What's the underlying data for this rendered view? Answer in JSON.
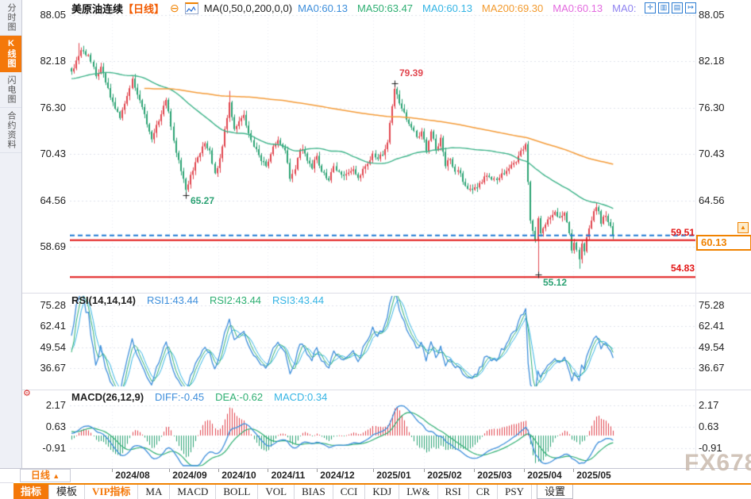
{
  "app": {
    "watermark": "FX678"
  },
  "sidebar": {
    "items": [
      {
        "label": "分时图",
        "active": false
      },
      {
        "label": "K线图",
        "active": true
      },
      {
        "label": "闪电图",
        "active": false
      },
      {
        "label": "合约资料",
        "active": false
      }
    ]
  },
  "header": {
    "title": "美原油连续",
    "interval_tag": "【日线】",
    "ma_settings": "MA(0,50,0,200,0,0)",
    "ma_values": [
      {
        "label": "MA0:60.13",
        "color": "#3d8edb"
      },
      {
        "label": "MA50:63.47",
        "color": "#2eaf72"
      },
      {
        "label": "MA0:60.13",
        "color": "#34b4e4"
      },
      {
        "label": "MA200:69.30",
        "color": "#f29a2e"
      },
      {
        "label": "MA0:60.13",
        "color": "#e36adf"
      },
      {
        "label": "MA0:",
        "color": "#8f83f0"
      }
    ],
    "window_icons": [
      {
        "name": "crosshair-icon",
        "glyph": "✛"
      },
      {
        "name": "axis-range-icon",
        "glyph": "▥"
      },
      {
        "name": "chart-zoom-icon",
        "glyph": "▤"
      },
      {
        "name": "goto-latest-icon",
        "glyph": "↦"
      }
    ]
  },
  "main_axis": {
    "labels": [
      "88.05",
      "82.18",
      "76.30",
      "70.43",
      "64.56",
      "58.69"
    ]
  },
  "annotations": {
    "high": "79.39",
    "low_sep": "65.27",
    "low_apr": "55.12",
    "level_upper": "59.51",
    "level_lower": "54.83",
    "last_price": "60.13"
  },
  "rsi": {
    "title": "RSI(14,14,14)",
    "values": [
      {
        "label": "RSI1:43.44",
        "color": "#3d8edb"
      },
      {
        "label": "RSI2:43.44",
        "color": "#2eaf72"
      },
      {
        "label": "RSI3:43.44",
        "color": "#34b4e4"
      }
    ],
    "axis": [
      "75.28",
      "62.41",
      "49.54",
      "36.67"
    ]
  },
  "macd": {
    "title": "MACD(26,12,9)",
    "values": [
      {
        "label": "DIFF:-0.45",
        "color": "#3d8edb"
      },
      {
        "label": "DEA:-0.62",
        "color": "#2eaf72"
      },
      {
        "label": "MACD:0.34",
        "color": "#34b4e4"
      }
    ],
    "axis": [
      "2.17",
      "0.63",
      "-0.91"
    ]
  },
  "x_axis": {
    "interval_label": "日线",
    "interval_arrow": "▲",
    "months": [
      "2024/08",
      "2024/09",
      "2024/10",
      "2024/11",
      "2024/12",
      "2025/01",
      "2025/02",
      "2025/03",
      "2025/04",
      "2025/05"
    ]
  },
  "toolbar": {
    "items": [
      {
        "label": "指标",
        "style": "active"
      },
      {
        "label": "模板",
        "style": ""
      },
      {
        "label": "VIP指标",
        "style": "vip"
      },
      {
        "label": "MA",
        "style": ""
      },
      {
        "label": "MACD",
        "style": ""
      },
      {
        "label": "BOLL",
        "style": ""
      },
      {
        "label": "VOL",
        "style": ""
      },
      {
        "label": "BIAS",
        "style": ""
      },
      {
        "label": "CCI",
        "style": ""
      },
      {
        "label": "KDJ",
        "style": ""
      },
      {
        "label": "LW&",
        "style": ""
      },
      {
        "label": "RSI",
        "style": ""
      },
      {
        "label": "CR",
        "style": ""
      },
      {
        "label": "PSY",
        "style": ""
      },
      {
        "label": "设置",
        "style": "settab"
      }
    ]
  },
  "chart_data": {
    "type": "candlestick",
    "title": "美原油连续【日线】",
    "y_axis_ticks": [
      88.05,
      82.18,
      76.3,
      70.43,
      64.56,
      58.69
    ],
    "rsi_ticks": [
      75.28,
      62.41,
      49.54,
      36.67
    ],
    "macd_ticks": [
      2.17,
      0.63,
      -0.91
    ],
    "months": [
      "2024/08",
      "2024/09",
      "2024/10",
      "2024/11",
      "2024/12",
      "2025/01",
      "2025/02",
      "2025/03",
      "2025/04",
      "2025/05"
    ],
    "key_levels": {
      "last_price": 60.13,
      "upper_line": 59.51,
      "lower_line": 54.83
    },
    "marked_points": [
      {
        "i": 133,
        "price": 79.39,
        "type": "high"
      },
      {
        "i": 47,
        "price": 65.27,
        "type": "low"
      },
      {
        "i": 192,
        "price": 55.12,
        "type": "low"
      }
    ],
    "indicators": {
      "ma": [
        {
          "period": 50,
          "last": 63.47
        },
        {
          "period": 200,
          "last": 69.3
        }
      ],
      "rsi": {
        "period": 14,
        "rsi1": 43.44,
        "rsi2": 43.44,
        "rsi3": 43.44
      },
      "macd": {
        "slow": 26,
        "fast": 12,
        "signal": 9,
        "diff": -0.45,
        "dea": -0.62,
        "hist": 0.34
      }
    },
    "close_anchors": [
      [
        0,
        80.9
      ],
      [
        2,
        82.3
      ],
      [
        4,
        83.6
      ],
      [
        7,
        83.0
      ],
      [
        10,
        80.3
      ],
      [
        12,
        81.5
      ],
      [
        16,
        77.6
      ],
      [
        20,
        75.0
      ],
      [
        23,
        77.8
      ],
      [
        25,
        80.0
      ],
      [
        29,
        76.4
      ],
      [
        33,
        72.3
      ],
      [
        36,
        74.6
      ],
      [
        39,
        77.3
      ],
      [
        43,
        70.6
      ],
      [
        46,
        67.3
      ],
      [
        47,
        65.9
      ],
      [
        49,
        67.8
      ],
      [
        51,
        69.4
      ],
      [
        55,
        71.8
      ],
      [
        57,
        70.9
      ],
      [
        59,
        68.0
      ],
      [
        61,
        69.9
      ],
      [
        63,
        73.6
      ],
      [
        65,
        77.0
      ],
      [
        67,
        73.6
      ],
      [
        69,
        74.6
      ],
      [
        71,
        75.4
      ],
      [
        74,
        72.2
      ],
      [
        77,
        70.3
      ],
      [
        80,
        68.9
      ],
      [
        83,
        71.4
      ],
      [
        85,
        72.2
      ],
      [
        88,
        70.9
      ],
      [
        90,
        67.3
      ],
      [
        92,
        68.5
      ],
      [
        94,
        71.0
      ],
      [
        96,
        70.5
      ],
      [
        99,
        68.6
      ],
      [
        101,
        70.2
      ],
      [
        103,
        68.2
      ],
      [
        106,
        67.1
      ],
      [
        108,
        68.9
      ],
      [
        110,
        68.2
      ],
      [
        113,
        67.9
      ],
      [
        116,
        68.5
      ],
      [
        118,
        67.4
      ],
      [
        121,
        68.9
      ],
      [
        124,
        70.5
      ],
      [
        126,
        69.8
      ],
      [
        128,
        70.3
      ],
      [
        130,
        71.9
      ],
      [
        132,
        76.5
      ],
      [
        133,
        78.7
      ],
      [
        134,
        78.0
      ],
      [
        136,
        76.2
      ],
      [
        138,
        74.8
      ],
      [
        140,
        73.8
      ],
      [
        142,
        72.6
      ],
      [
        144,
        73.3
      ],
      [
        146,
        70.8
      ],
      [
        148,
        73.3
      ],
      [
        150,
        70.9
      ],
      [
        152,
        72.5
      ],
      [
        154,
        68.9
      ],
      [
        156,
        69.8
      ],
      [
        158,
        68.2
      ],
      [
        160,
        68.0
      ],
      [
        162,
        66.4
      ],
      [
        165,
        65.9
      ],
      [
        167,
        66.2
      ],
      [
        170,
        67.6
      ],
      [
        173,
        67.2
      ],
      [
        176,
        67.4
      ],
      [
        179,
        68.3
      ],
      [
        182,
        69.3
      ],
      [
        184,
        70.2
      ],
      [
        186,
        71.0
      ],
      [
        187,
        71.7
      ],
      [
        188,
        66.9
      ],
      [
        189,
        62.0
      ],
      [
        190,
        60.7
      ],
      [
        191,
        59.6
      ],
      [
        192,
        62.3
      ],
      [
        193,
        60.4
      ],
      [
        195,
        61.5
      ],
      [
        197,
        62.4
      ],
      [
        199,
        63.1
      ],
      [
        201,
        62.4
      ],
      [
        203,
        63.0
      ],
      [
        205,
        60.4
      ],
      [
        206,
        58.2
      ],
      [
        207,
        59.2
      ],
      [
        208,
        58.3
      ],
      [
        209,
        57.1
      ],
      [
        210,
        59.1
      ],
      [
        211,
        58.1
      ],
      [
        212,
        59.9
      ],
      [
        214,
        62.0
      ],
      [
        216,
        63.7
      ],
      [
        217,
        63.2
      ],
      [
        218,
        61.6
      ],
      [
        219,
        62.5
      ],
      [
        220,
        62.6
      ],
      [
        222,
        61.3
      ],
      [
        223,
        60.13
      ]
    ],
    "wick_overrides": {
      "3": {
        "high": 84.5
      },
      "47": {
        "low": 65.27
      },
      "65": {
        "high": 78.45
      },
      "133": {
        "high": 79.39
      },
      "187": {
        "high": 71.9
      },
      "192": {
        "low": 55.12
      },
      "209": {
        "low": 55.9
      },
      "216": {
        "high": 64.3
      }
    },
    "colors": {
      "up": "#e1454e",
      "down": "#2ba273",
      "ma50": "#3db389",
      "ma200": "#f49b38",
      "last_price_line": "#1f7ad4",
      "level_line": "#e21515",
      "rsi1": "#3d8edb",
      "rsi2": "#2eaf72",
      "rsi3": "#34b4e4",
      "diff": "#3d8edb",
      "dea": "#2eaf72",
      "hist_pos": "#e1454e",
      "hist_neg": "#2ba273",
      "grid": "#dfe2ec"
    }
  }
}
